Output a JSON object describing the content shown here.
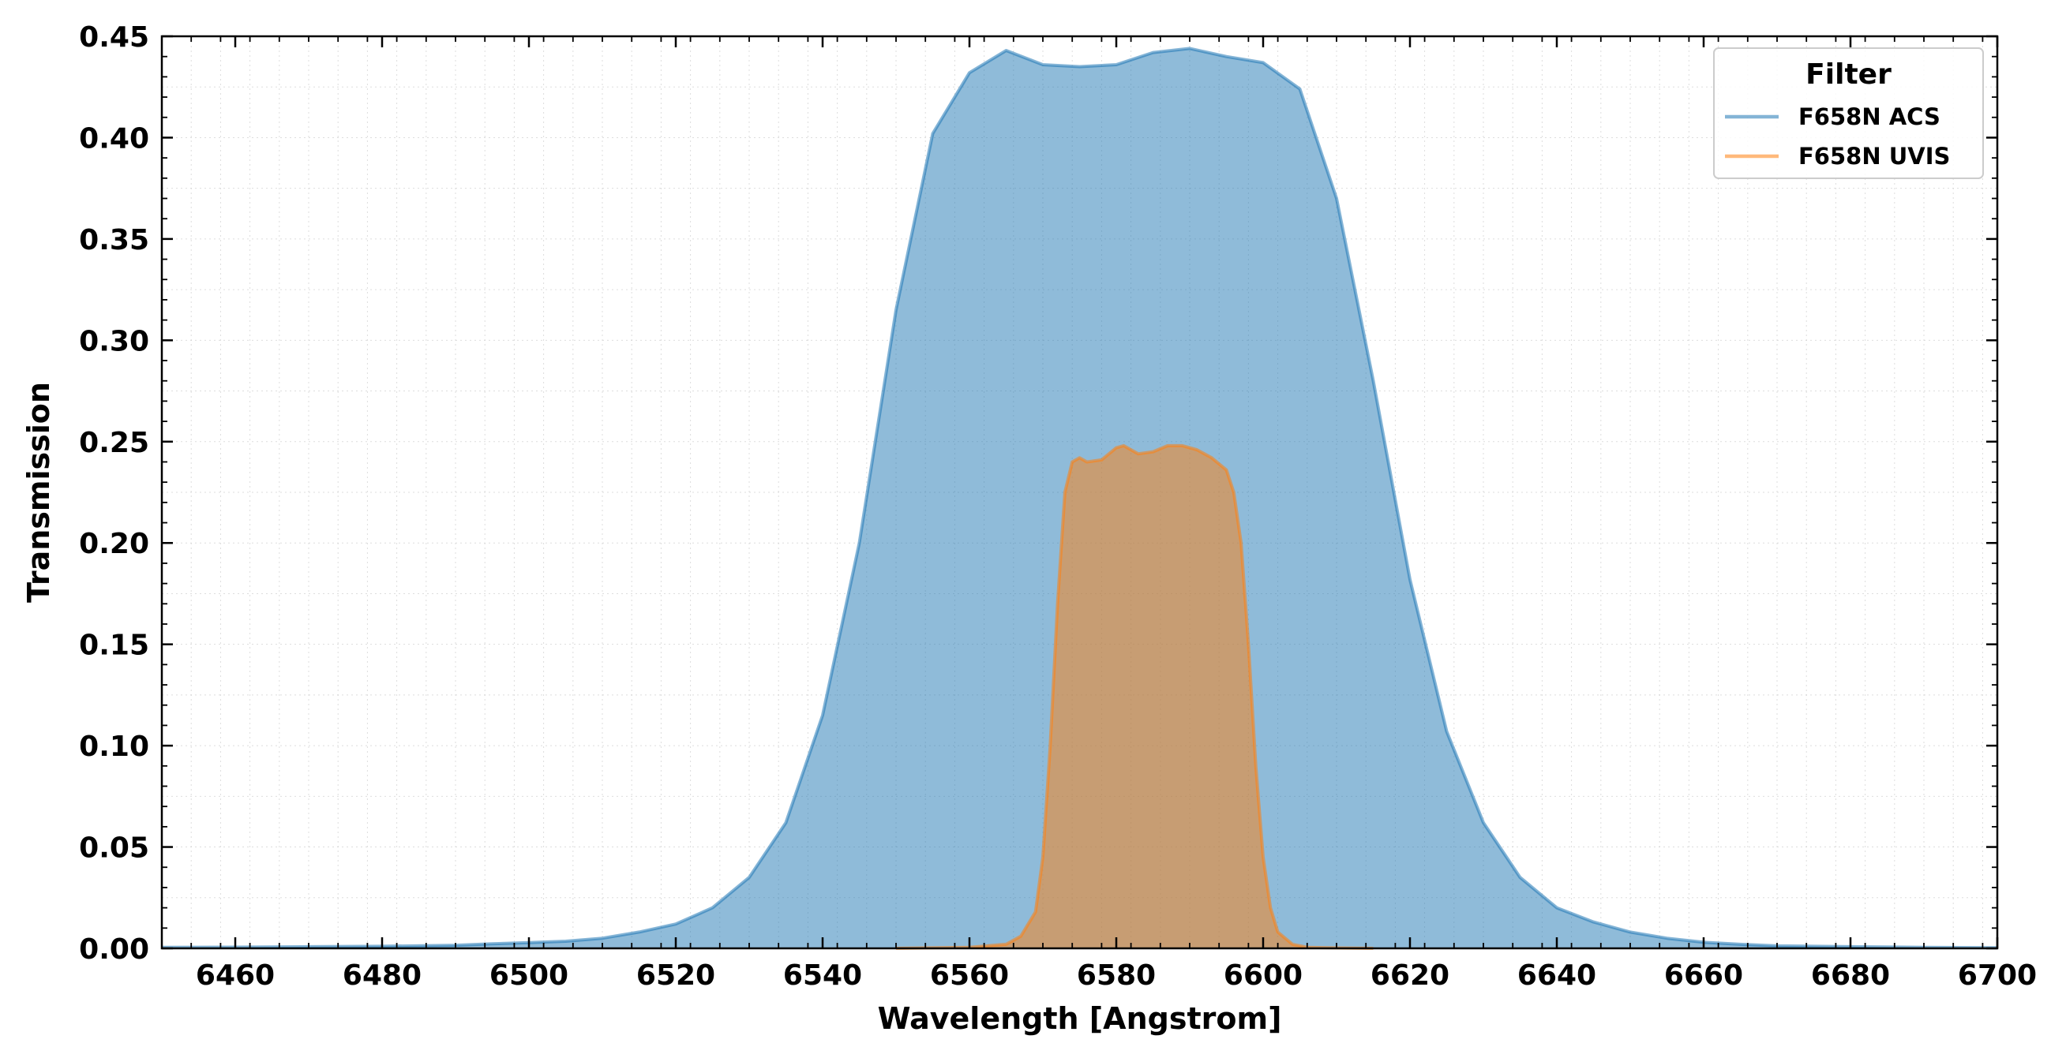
{
  "chart_data": {
    "type": "area",
    "title": "",
    "xlabel": "Wavelength [Angstrom]",
    "ylabel": "Transmission",
    "xlim": [
      6450,
      6700
    ],
    "ylim": [
      0,
      0.45
    ],
    "xticks": [
      "6460",
      "6480",
      "6500",
      "6520",
      "6540",
      "6560",
      "6580",
      "6600",
      "6620",
      "6640",
      "6660",
      "6680",
      "6700"
    ],
    "yticks": [
      "0.00",
      "0.05",
      "0.10",
      "0.15",
      "0.20",
      "0.25",
      "0.30",
      "0.35",
      "0.40",
      "0.45"
    ],
    "grid": true,
    "legend": {
      "title": "Filter",
      "placement": "top-right"
    },
    "series": [
      {
        "name": "F658N ACS",
        "color": "#1f77b4",
        "x": [
          6450,
          6460,
          6470,
          6480,
          6490,
          6495,
          6500,
          6505,
          6510,
          6515,
          6520,
          6525,
          6530,
          6535,
          6540,
          6545,
          6550,
          6555,
          6560,
          6565,
          6570,
          6575,
          6580,
          6585,
          6590,
          6595,
          6600,
          6605,
          6610,
          6615,
          6620,
          6625,
          6630,
          6635,
          6640,
          6645,
          6650,
          6655,
          6660,
          6665,
          6670,
          6680,
          6690,
          6700
        ],
        "values": [
          0.0005,
          0.0006,
          0.0008,
          0.001,
          0.0015,
          0.0022,
          0.0028,
          0.0035,
          0.005,
          0.008,
          0.012,
          0.02,
          0.035,
          0.062,
          0.115,
          0.2,
          0.315,
          0.402,
          0.432,
          0.443,
          0.436,
          0.435,
          0.436,
          0.442,
          0.444,
          0.44,
          0.437,
          0.424,
          0.37,
          0.28,
          0.182,
          0.107,
          0.062,
          0.035,
          0.02,
          0.013,
          0.008,
          0.005,
          0.003,
          0.002,
          0.0012,
          0.0008,
          0.0005,
          0.0003
        ]
      },
      {
        "name": "F658N UVIS",
        "color": "#ff7f0e",
        "x": [
          6550,
          6560,
          6565,
          6567,
          6569,
          6570,
          6571,
          6572,
          6573,
          6574,
          6575,
          6576,
          6578,
          6580,
          6581,
          6583,
          6585,
          6587,
          6589,
          6591,
          6593,
          6595,
          6596,
          6597,
          6598,
          6599,
          6600,
          6601,
          6602,
          6604,
          6606,
          6610,
          6615
        ],
        "values": [
          0,
          0.0005,
          0.002,
          0.006,
          0.018,
          0.045,
          0.1,
          0.17,
          0.225,
          0.24,
          0.242,
          0.24,
          0.241,
          0.247,
          0.248,
          0.244,
          0.245,
          0.248,
          0.248,
          0.246,
          0.242,
          0.236,
          0.225,
          0.2,
          0.15,
          0.09,
          0.045,
          0.02,
          0.008,
          0.002,
          0.0005,
          0.0002,
          0
        ]
      }
    ]
  }
}
